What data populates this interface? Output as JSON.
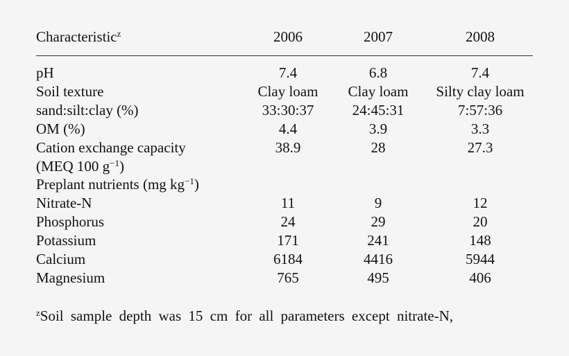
{
  "header": {
    "label": "Characteristic",
    "label_sup": "z",
    "years": [
      "2006",
      "2007",
      "2008"
    ]
  },
  "rows": [
    {
      "label": "pH",
      "values": [
        "7.4",
        "6.8",
        "7.4"
      ]
    },
    {
      "label": "Soil texture",
      "values": [
        "Clay loam",
        "Clay loam",
        "Silty clay loam"
      ]
    },
    {
      "label": "sand:silt:clay (%)",
      "values": [
        "33:30:37",
        "24:45:31",
        "7:57:36"
      ]
    },
    {
      "label": "OM (%)",
      "values": [
        "4.4",
        "3.9",
        "3.3"
      ]
    },
    {
      "label": "Cation exchange capacity",
      "values": [
        "38.9",
        "28",
        "27.3"
      ]
    },
    {
      "label": "(MEQ 100 g",
      "label_sup": "−1",
      "label_end": ")",
      "values": [
        "",
        "",
        ""
      ]
    },
    {
      "label": "Preplant nutrients (mg kg",
      "label_sup": "−1",
      "label_end": ")",
      "values": [
        "",
        "",
        ""
      ]
    },
    {
      "label": "Nitrate-N",
      "values": [
        "11",
        "9",
        "12"
      ]
    },
    {
      "label": "Phosphorus",
      "values": [
        "24",
        "29",
        "20"
      ]
    },
    {
      "label": "Potassium",
      "values": [
        "171",
        "241",
        "148"
      ]
    },
    {
      "label": "Calcium",
      "values": [
        "6184",
        "4416",
        "5944"
      ]
    },
    {
      "label": "Magnesium",
      "values": [
        "765",
        "495",
        "406"
      ]
    }
  ],
  "footnote": {
    "mark": "z",
    "text": "Soil sample depth was 15 cm for all parameters except nitrate-N,"
  }
}
